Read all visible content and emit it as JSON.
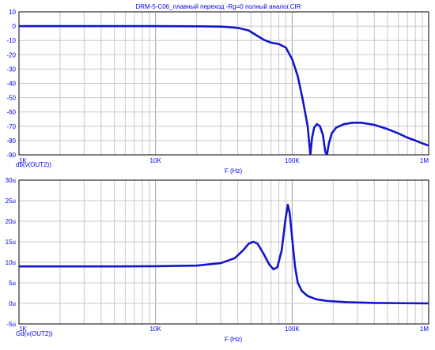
{
  "title": "DRM-5-C06_плавный переход -Rg=0 полный аналог.CIR",
  "colors": {
    "grid": "#c8c8c8",
    "axis": "#000000",
    "text": "#0000ee",
    "trace": "#1414cc"
  },
  "chart_data": [
    {
      "type": "line",
      "xscale": "log",
      "xlim": [
        1000,
        1000000
      ],
      "ylim": [
        -90,
        10
      ],
      "xlabel": "F (Hz)",
      "ylabel": "",
      "trace_label": "db(v(OUT2))",
      "x_ticks": [
        {
          "value": 1000,
          "label": "1K"
        },
        {
          "value": 10000,
          "label": "10K"
        },
        {
          "value": 100000,
          "label": "100K"
        },
        {
          "value": 1000000,
          "label": "1M"
        }
      ],
      "y_ticks": [
        {
          "value": 10,
          "label": "10"
        },
        {
          "value": 0,
          "label": "0"
        },
        {
          "value": -10,
          "label": "-10"
        },
        {
          "value": -20,
          "label": "-20"
        },
        {
          "value": -30,
          "label": "-30"
        },
        {
          "value": -40,
          "label": "-40"
        },
        {
          "value": -50,
          "label": "-50"
        },
        {
          "value": -60,
          "label": "-60"
        },
        {
          "value": -70,
          "label": "-70"
        },
        {
          "value": -80,
          "label": "-80"
        },
        {
          "value": -90,
          "label": "-90"
        }
      ],
      "series": [
        {
          "points": [
            [
              1000,
              0
            ],
            [
              5000,
              0
            ],
            [
              10000,
              0
            ],
            [
              20000,
              -0.1
            ],
            [
              30000,
              -0.3
            ],
            [
              40000,
              -1.2
            ],
            [
              48000,
              -3
            ],
            [
              55000,
              -6.5
            ],
            [
              62000,
              -9.5
            ],
            [
              70000,
              -11.5
            ],
            [
              80000,
              -12.5
            ],
            [
              90000,
              -15
            ],
            [
              100000,
              -23
            ],
            [
              110000,
              -35
            ],
            [
              120000,
              -52
            ],
            [
              130000,
              -70
            ],
            [
              136000,
              -90
            ],
            [
              140000,
              -78
            ],
            [
              145000,
              -71
            ],
            [
              152000,
              -68.5
            ],
            [
              160000,
              -70
            ],
            [
              168000,
              -76
            ],
            [
              175000,
              -88
            ],
            [
              180000,
              -90
            ],
            [
              186000,
              -82
            ],
            [
              195000,
              -75
            ],
            [
              210000,
              -71
            ],
            [
              240000,
              -68.5
            ],
            [
              280000,
              -67.5
            ],
            [
              320000,
              -67.5
            ],
            [
              400000,
              -69
            ],
            [
              500000,
              -72
            ],
            [
              600000,
              -75
            ],
            [
              700000,
              -78
            ],
            [
              800000,
              -80
            ],
            [
              900000,
              -82
            ],
            [
              1000000,
              -83.5
            ]
          ]
        }
      ]
    },
    {
      "type": "line",
      "xscale": "log",
      "xlim": [
        1000,
        1000000
      ],
      "ylim": [
        -5,
        30
      ],
      "xlabel": "F (Hz)",
      "ylabel": "",
      "trace_label": "Gd(v(OUT2))",
      "x_ticks": [
        {
          "value": 1000,
          "label": "1K"
        },
        {
          "value": 10000,
          "label": "10K"
        },
        {
          "value": 100000,
          "label": "100K"
        },
        {
          "value": 1000000,
          "label": "1M"
        }
      ],
      "y_ticks": [
        {
          "value": 30,
          "label": "30u"
        },
        {
          "value": 25,
          "label": "25u"
        },
        {
          "value": 20,
          "label": "20u"
        },
        {
          "value": 15,
          "label": "15u"
        },
        {
          "value": 10,
          "label": "10u"
        },
        {
          "value": 5,
          "label": "5u"
        },
        {
          "value": 0,
          "label": "0u"
        },
        {
          "value": -5,
          "label": "-5u"
        }
      ],
      "series": [
        {
          "points": [
            [
              1000,
              9
            ],
            [
              5000,
              9
            ],
            [
              10000,
              9.05
            ],
            [
              20000,
              9.2
            ],
            [
              30000,
              9.8
            ],
            [
              38000,
              11
            ],
            [
              44000,
              13
            ],
            [
              48000,
              14.5
            ],
            [
              52000,
              15
            ],
            [
              56000,
              14.5
            ],
            [
              62000,
              12
            ],
            [
              68000,
              9.5
            ],
            [
              73000,
              8.3
            ],
            [
              78000,
              8.8
            ],
            [
              84000,
              13
            ],
            [
              89000,
              20
            ],
            [
              93000,
              24
            ],
            [
              96000,
              22
            ],
            [
              100000,
              16
            ],
            [
              105000,
              9
            ],
            [
              110000,
              5
            ],
            [
              118000,
              3
            ],
            [
              130000,
              1.8
            ],
            [
              150000,
              1
            ],
            [
              180000,
              0.6
            ],
            [
              250000,
              0.3
            ],
            [
              400000,
              0.1
            ],
            [
              1000000,
              0
            ]
          ]
        }
      ]
    }
  ]
}
